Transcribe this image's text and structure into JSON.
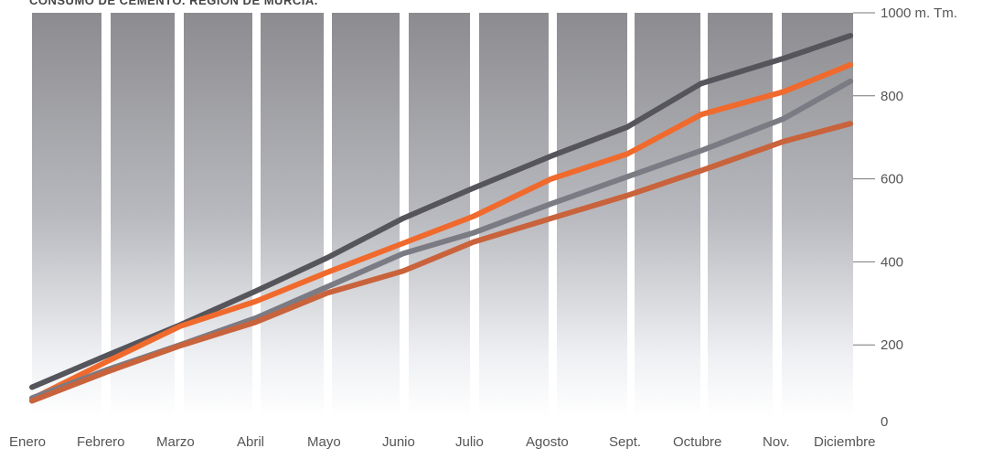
{
  "chart_data": {
    "type": "line",
    "title": "CONSUMO DE CEMENTO. REGIÓN DE MURCIA.",
    "categories": [
      "Enero",
      "Febrero",
      "Marzo",
      "Abril",
      "Mayo",
      "Junio",
      "Julio",
      "Agosto",
      "Sept.",
      "Octubre",
      "Nov.",
      "Diciembre"
    ],
    "yticks": [
      "0",
      "200",
      "400",
      "600",
      "800",
      "1000 m. Tm."
    ],
    "ylim": [
      0,
      1000
    ],
    "grid": false,
    "series": [
      {
        "color": "#55555b",
        "values": [
          98,
          175,
          248,
          330,
          410,
          505,
          578,
          655,
          725,
          830,
          890,
          945
        ]
      },
      {
        "color": "#f06a2d",
        "values": [
          70,
          160,
          245,
          305,
          375,
          445,
          510,
          600,
          660,
          755,
          810,
          875
        ]
      },
      {
        "color": "#7b7b84",
        "values": [
          72,
          140,
          200,
          265,
          340,
          420,
          470,
          540,
          605,
          668,
          745,
          835
        ]
      },
      {
        "color": "#c9633c",
        "values": [
          65,
          135,
          198,
          255,
          325,
          378,
          448,
          505,
          560,
          620,
          690,
          733
        ]
      }
    ]
  }
}
